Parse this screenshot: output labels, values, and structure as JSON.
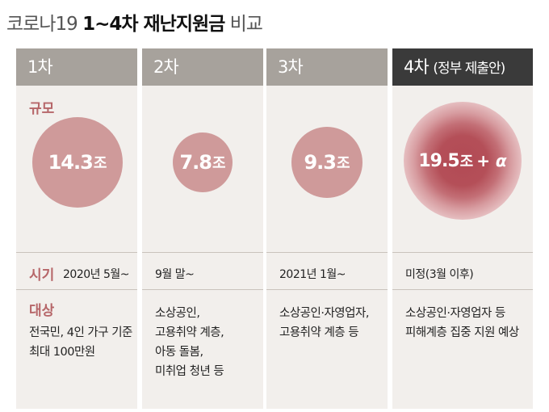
{
  "title": {
    "prefix": "코로나19",
    "main": "1~4차 재난지원금",
    "suffix": "비교"
  },
  "labels": {
    "scale": "규모",
    "when": "시기",
    "target": "대상"
  },
  "columns": [
    {
      "header": "1차",
      "header_sub": "",
      "amount": "14.3",
      "unit": "조",
      "extra": "",
      "when": "2020년 5월~",
      "target_lines": [
        "전국민, 4인 가구 기준",
        "최대 100만원"
      ]
    },
    {
      "header": "2차",
      "header_sub": "",
      "amount": "7.8",
      "unit": "조",
      "extra": "",
      "when": "9월 말~",
      "target_lines": [
        "소상공인,",
        "고용취약 계층,",
        "아동 돌봄,",
        "미취업 청년 등"
      ]
    },
    {
      "header": "3차",
      "header_sub": "",
      "amount": "9.3",
      "unit": "조",
      "extra": "",
      "when": "2021년 1월~",
      "target_lines": [
        "소상공인·자영업자,",
        "고용취약 계층 등"
      ]
    },
    {
      "header": "4차",
      "header_sub": "(정부 제출안)",
      "amount": "19.5",
      "unit": "조",
      "extra": "+ α",
      "when": "미정(3월 이후)",
      "target_lines": [
        "소상공인·자영업자 등",
        "피해계층 집중 지원 예상"
      ]
    }
  ],
  "colors": {
    "header_gray": "#a7a29c",
    "header_dark": "#3a3a3a",
    "column_bg": "#f2efec",
    "circle": "#cf9a9a",
    "circle_4_core": "#b24a55",
    "label_accent": "#b66669"
  }
}
